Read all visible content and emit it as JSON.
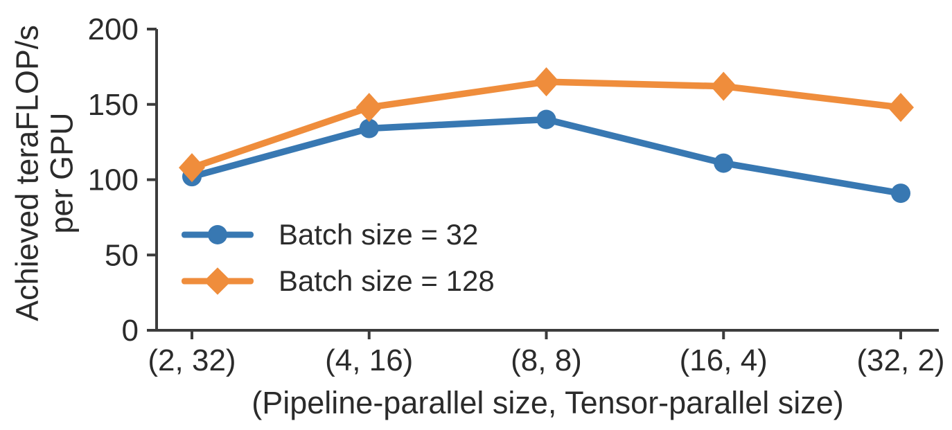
{
  "chart_data": {
    "type": "line",
    "title": "",
    "xlabel": "(Pipeline-parallel size, Tensor-parallel size)",
    "ylabel_lines": [
      "Achieved teraFLOP/s",
      "per GPU"
    ],
    "categories": [
      "(2, 32)",
      "(4, 16)",
      "(8, 8)",
      "(16, 4)",
      "(32, 2)"
    ],
    "series": [
      {
        "name": "Batch size = 32",
        "marker": "circle",
        "color": "#3878b2",
        "values": [
          102,
          134,
          140,
          111,
          91
        ]
      },
      {
        "name": "Batch size = 128",
        "marker": "diamond",
        "color": "#ef8d3c",
        "values": [
          108,
          148,
          165,
          162,
          148
        ]
      }
    ],
    "yticks": [
      0,
      50,
      100,
      150,
      200
    ],
    "ylim": [
      0,
      200
    ],
    "grid": false,
    "legend_position": "inside-lower-left",
    "colors": {
      "axis": "#3c3c3c",
      "text": "#2b2b2b",
      "background": "#ffffff"
    }
  }
}
